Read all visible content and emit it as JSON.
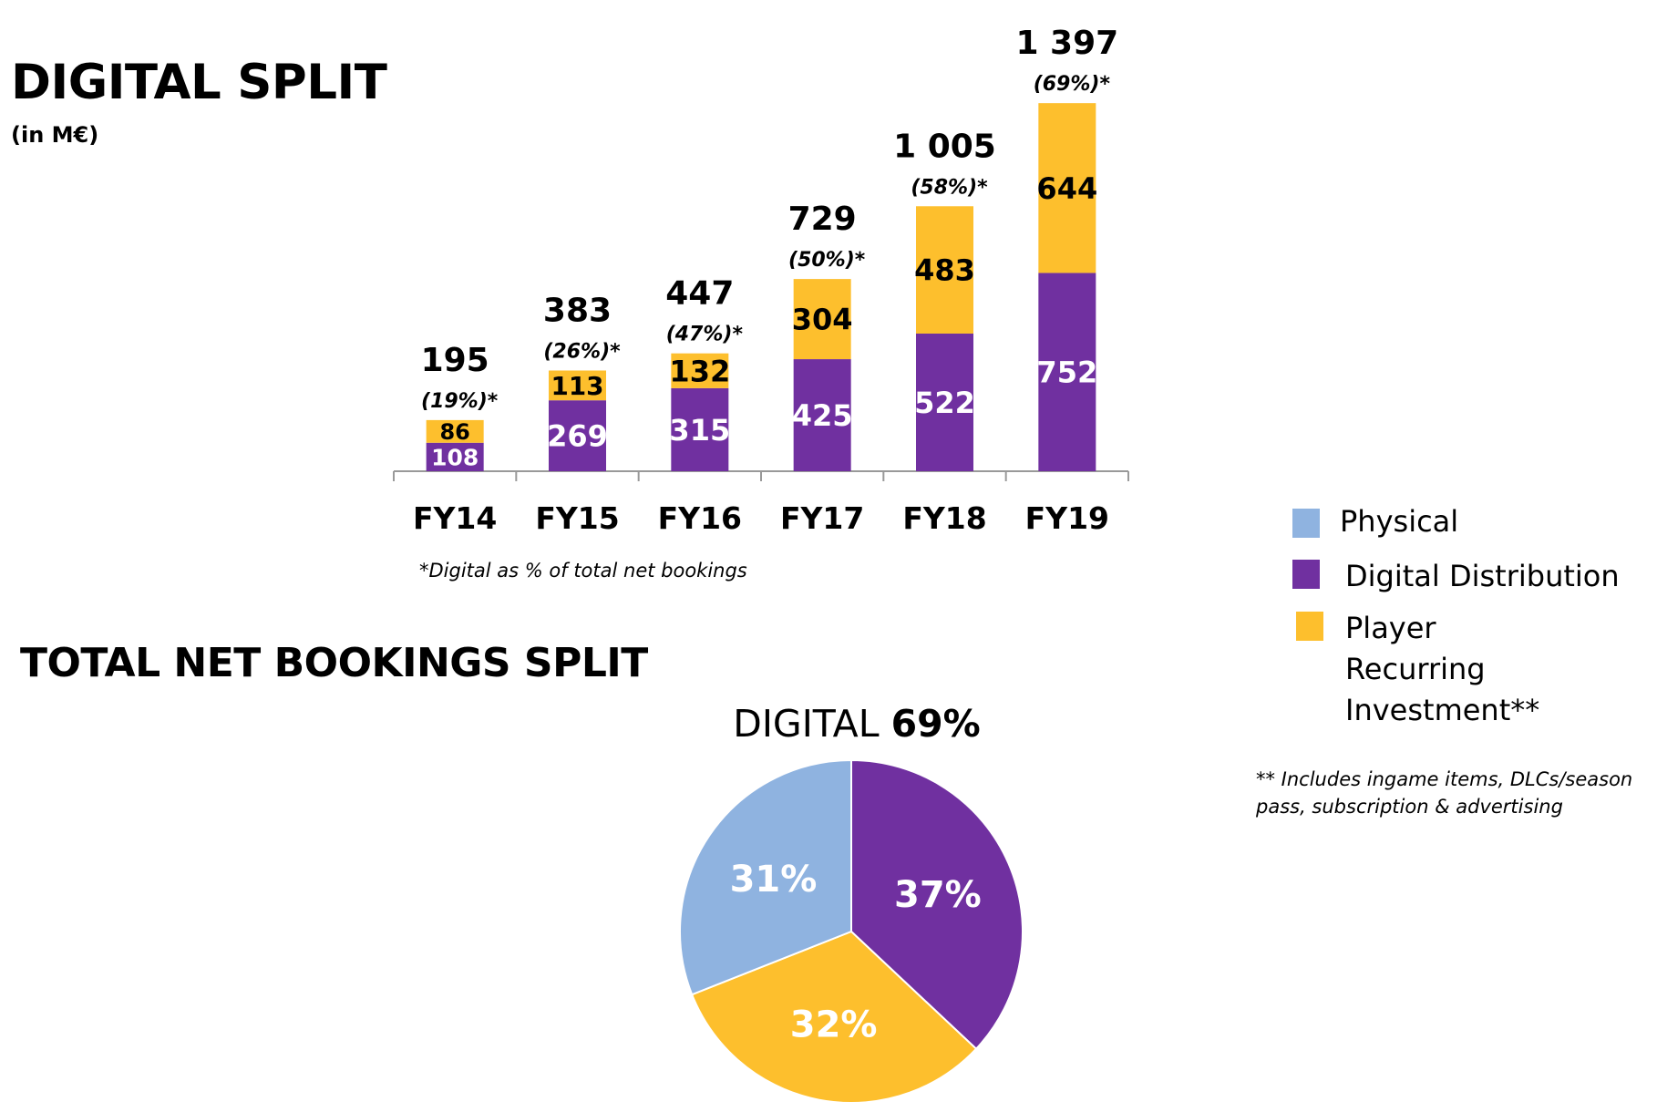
{
  "titles": {
    "digital_split": "DIGITAL SPLIT",
    "unit": "(in M€)",
    "total_split": "TOTAL NET BOOKINGS SPLIT",
    "footnote_digital": "*Digital as % of total net bookings",
    "footnote_pri": "** Includes ingame items, DLCs/season pass, subscription & advertising"
  },
  "colors": {
    "physical": "#8FB3E0",
    "digital_distribution": "#7030A0",
    "player_recurring": "#FDBF2D"
  },
  "legend": [
    {
      "key": "physical",
      "label": "Physical"
    },
    {
      "key": "digital_distribution",
      "label": "Digital Distribution"
    },
    {
      "key": "player_recurring",
      "label": "Player Recurring Investment**",
      "lines": [
        "Player",
        "Recurring",
        "Investment**"
      ]
    }
  ],
  "chart_data": [
    {
      "type": "bar",
      "stacked": true,
      "title": "DIGITAL SPLIT",
      "subtitle": "(in M€)",
      "categories": [
        "FY14",
        "FY15",
        "FY16",
        "FY17",
        "FY18",
        "FY19"
      ],
      "series": [
        {
          "name": "Digital Distribution",
          "values": [
            108,
            269,
            315,
            425,
            522,
            752
          ]
        },
        {
          "name": "Player Recurring Investment**",
          "values": [
            86,
            113,
            132,
            304,
            483,
            644
          ]
        }
      ],
      "totals": [
        "195",
        "383",
        "447",
        "729",
        "1 005",
        "1 397"
      ],
      "digital_pct": [
        "(19%)*",
        "(26%)*",
        "(47%)*",
        "(50%)*",
        "(58%)*",
        "(69%)*"
      ],
      "ylim": [
        0,
        1400
      ],
      "grid": false
    },
    {
      "type": "pie",
      "title_prefix": "DIGITAL",
      "title_value": "69%",
      "slices": [
        {
          "name": "Digital Distribution",
          "value": 37,
          "label": "37%"
        },
        {
          "name": "Player Recurring Investment**",
          "value": 32,
          "label": "32%"
        },
        {
          "name": "Physical",
          "value": 31,
          "label": "31%"
        }
      ]
    }
  ]
}
